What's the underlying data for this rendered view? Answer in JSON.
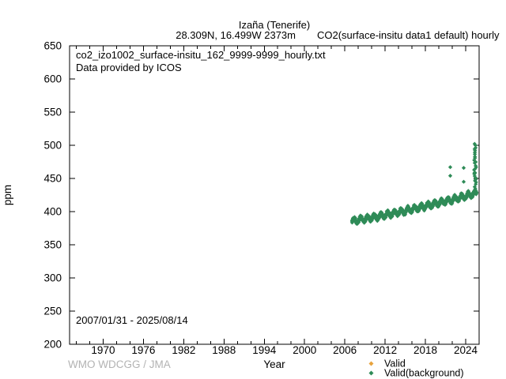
{
  "header": {
    "title": "Izaña (Tenerife)",
    "station": "28.309N, 16.499W 2373m",
    "dataset": "CO2(surface-insitu data1 default) hourly"
  },
  "annotations": {
    "filename": "co2_izo1002_surface-insitu_162_9999-9999_hourly.txt",
    "provider": "Data provided by ICOS",
    "period": "2007/01/31 - 2025/08/14",
    "watermark": "WMO WDCGG / JMA"
  },
  "colors": {
    "valid": "#e8a33d",
    "valid_background": "#2e8b57",
    "axis": "#000000",
    "watermark": "#b3b3b3"
  },
  "chart_data": {
    "type": "scatter",
    "title": "Izaña (Tenerife)",
    "xlabel": "Year",
    "ylabel": "ppm",
    "xlim": [
      1965,
      2026
    ],
    "ylim": [
      200,
      650
    ],
    "grid": false,
    "legend_position": "below-axis-bottom-right",
    "x_major_ticks": [
      1970,
      1976,
      1982,
      1988,
      1994,
      2000,
      2006,
      2012,
      2018,
      2024
    ],
    "x_minor_step_years": 2,
    "y_ticks": [
      200,
      250,
      300,
      350,
      400,
      450,
      500,
      550,
      600,
      650
    ],
    "series": [
      {
        "name": "Valid",
        "color": "#e8a33d",
        "marker": "diamond",
        "points": []
      },
      {
        "name": "Valid(background)",
        "color": "#2e8b57",
        "marker": "diamond",
        "coverage": {
          "start_year": 2007.08,
          "end_year": 2025.62
        },
        "trend": {
          "years": [
            2007,
            2008,
            2009,
            2010,
            2011,
            2012,
            2013,
            2014,
            2015,
            2016,
            2017,
            2018,
            2019,
            2020,
            2021,
            2022,
            2023,
            2024,
            2025
          ],
          "annual_mean_ppm": [
            385.5,
            387.2,
            389.0,
            390.9,
            392.8,
            394.8,
            396.9,
            399.0,
            401.2,
            403.5,
            405.8,
            408.2,
            410.6,
            413.0,
            415.5,
            418.0,
            420.6,
            423.3,
            426.0
          ]
        },
        "seasonal_amplitude_ppm": 3.6,
        "seasonal_peak_fraction_of_year": 0.37,
        "scatter_noise_ppm": 2.4,
        "outliers": [
          [
            2021.7,
            467
          ],
          [
            2021.7,
            454
          ],
          [
            2023.7,
            466
          ],
          [
            2023.7,
            445
          ]
        ],
        "spike": {
          "year": 2025.4,
          "min_ppm": 430,
          "max_ppm": 502
        }
      }
    ]
  }
}
